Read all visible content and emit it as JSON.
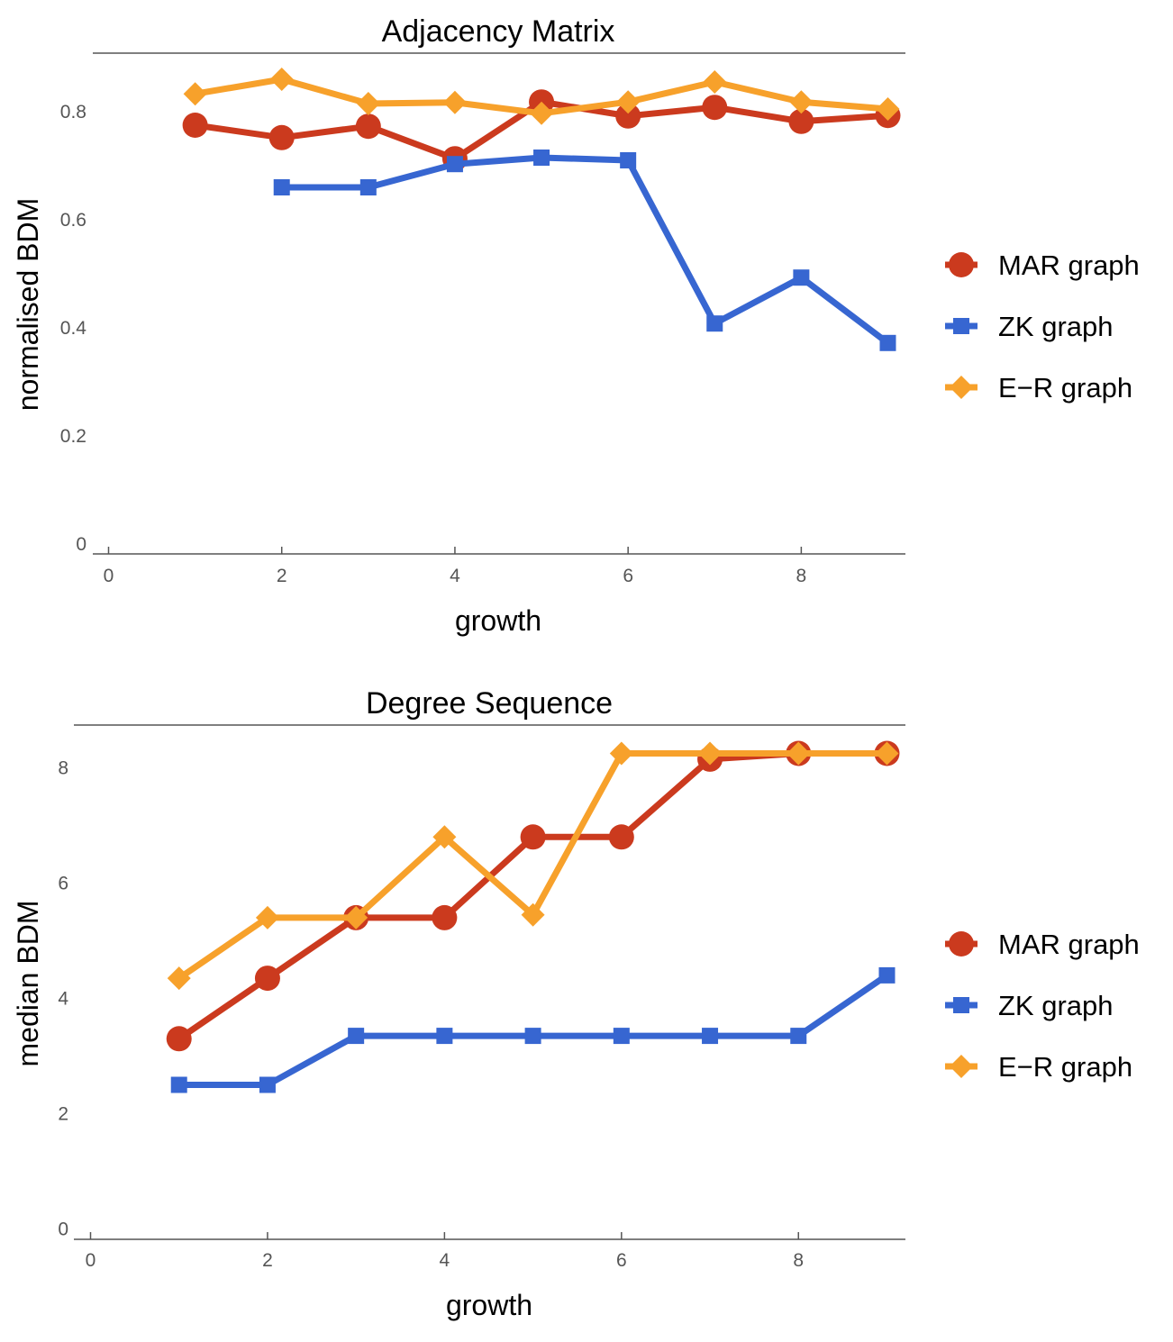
{
  "colors": {
    "MAR": "#cb3a1e",
    "ZK": "#3766d1",
    "ER": "#f7a12b"
  },
  "chart_data": [
    {
      "type": "line",
      "title": "Adjacency Matrix",
      "xlabel": "growth",
      "ylabel": "normalised BDM",
      "xlim": [
        0,
        9
      ],
      "ylim": [
        0,
        0.9
      ],
      "xticks": [
        0,
        2,
        4,
        6,
        8
      ],
      "xtick_labels": [
        "0",
        "2",
        "4",
        "6",
        "8"
      ],
      "yticks": [
        0,
        0.2,
        0.4,
        0.6,
        0.8
      ],
      "ytick_labels": [
        "0",
        "0.2",
        "0.4",
        "0.6",
        "0.8"
      ],
      "legend_position": "right",
      "series": [
        {
          "name": "MAR graph",
          "color_key": "MAR",
          "marker": "circle",
          "x": [
            1,
            2,
            3,
            4,
            5,
            6,
            7,
            8,
            9
          ],
          "y": [
            0.775,
            0.752,
            0.773,
            0.713,
            0.818,
            0.792,
            0.808,
            0.782,
            0.793
          ]
        },
        {
          "name": "ZK graph",
          "color_key": "ZK",
          "marker": "square",
          "x": [
            2,
            3,
            4,
            5,
            6,
            7,
            8,
            9
          ],
          "y": [
            0.66,
            0.66,
            0.703,
            0.715,
            0.71,
            0.408,
            0.493,
            0.372
          ]
        },
        {
          "name": "E−R graph",
          "color_key": "ER",
          "marker": "diamond",
          "x": [
            1,
            2,
            3,
            4,
            5,
            6,
            7,
            8,
            9
          ],
          "y": [
            0.833,
            0.86,
            0.815,
            0.817,
            0.797,
            0.818,
            0.855,
            0.818,
            0.805
          ]
        }
      ]
    },
    {
      "type": "line",
      "title": "Degree Sequence",
      "xlabel": "growth",
      "ylabel": "median BDM",
      "xlim": [
        0,
        9
      ],
      "ylim": [
        0,
        8.5
      ],
      "xticks": [
        0,
        2,
        4,
        6,
        8
      ],
      "xtick_labels": [
        "0",
        "2",
        "4",
        "6",
        "8"
      ],
      "yticks": [
        0,
        2,
        4,
        6,
        8
      ],
      "ytick_labels": [
        "0",
        "2",
        "4",
        "6",
        "8"
      ],
      "legend_position": "right",
      "series": [
        {
          "name": "MAR graph",
          "color_key": "MAR",
          "marker": "circle",
          "x": [
            1,
            2,
            3,
            4,
            5,
            6,
            7,
            8,
            9
          ],
          "y": [
            3.3,
            4.35,
            5.4,
            5.4,
            6.8,
            6.8,
            8.15,
            8.25,
            8.25
          ]
        },
        {
          "name": "ZK graph",
          "color_key": "ZK",
          "marker": "square",
          "x": [
            1,
            2,
            3,
            4,
            5,
            6,
            7,
            8,
            9
          ],
          "y": [
            2.5,
            2.5,
            3.35,
            3.35,
            3.35,
            3.35,
            3.35,
            3.35,
            4.4
          ]
        },
        {
          "name": "E−R graph",
          "color_key": "ER",
          "marker": "diamond",
          "x": [
            1,
            2,
            3,
            4,
            5,
            6,
            7,
            8,
            9
          ],
          "y": [
            4.35,
            5.4,
            5.4,
            6.8,
            5.45,
            8.25,
            8.25,
            8.25,
            8.25
          ]
        }
      ]
    }
  ]
}
